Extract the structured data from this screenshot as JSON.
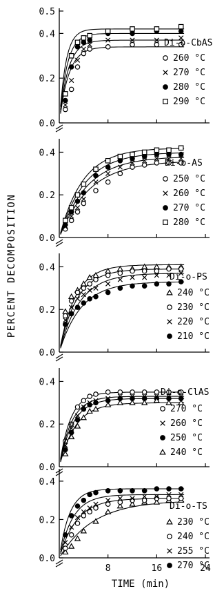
{
  "figure": {
    "ylabel": "PERCENT DECOMPOSITION",
    "xlabel": "TIME (min)"
  },
  "colors": {
    "ink": "#000000",
    "paper": "#ffffff"
  },
  "chart_data": [
    {
      "type": "scatter",
      "title": "Di-o-CbAS",
      "xlim": [
        0,
        24
      ],
      "ylim": [
        0,
        0.5
      ],
      "yticks": [
        "0.0",
        "0.2",
        "0.4",
        "0.5"
      ],
      "series": [
        {
          "name": "260 °C",
          "marker": "open-circle",
          "x": [
            1,
            2,
            3,
            4,
            5,
            8,
            12,
            16,
            20
          ],
          "y": [
            0.06,
            0.15,
            0.25,
            0.31,
            0.33,
            0.34,
            0.35,
            0.35,
            0.35
          ],
          "fit": [
            0.34,
            0.65
          ]
        },
        {
          "name": "270 °C",
          "marker": "cross",
          "x": [
            1,
            2,
            3,
            4,
            5,
            8,
            12,
            16,
            20
          ],
          "y": [
            0.08,
            0.19,
            0.28,
            0.33,
            0.35,
            0.37,
            0.37,
            0.37,
            0.38
          ],
          "fit": [
            0.37,
            0.7
          ]
        },
        {
          "name": "280 °C",
          "marker": "filled-circle",
          "x": [
            1,
            2,
            3,
            4,
            5,
            8,
            12,
            16,
            20
          ],
          "y": [
            0.1,
            0.25,
            0.34,
            0.36,
            0.37,
            0.4,
            0.4,
            0.41,
            0.41
          ],
          "fit": [
            0.4,
            0.8
          ]
        },
        {
          "name": "290 °C",
          "marker": "open-square",
          "x": [
            1,
            2,
            3,
            4,
            5,
            8,
            12,
            16,
            20
          ],
          "y": [
            0.13,
            0.3,
            0.36,
            0.38,
            0.39,
            0.41,
            0.42,
            0.42,
            0.43
          ],
          "fit": [
            0.42,
            0.95
          ]
        }
      ]
    },
    {
      "type": "scatter",
      "title": "Di-o-AS",
      "xlim": [
        0,
        24
      ],
      "ylim": [
        0,
        0.45
      ],
      "yticks": [
        "0.0",
        "0.2",
        "0.4"
      ],
      "series": [
        {
          "name": "250 °C",
          "marker": "open-circle",
          "x": [
            1,
            2,
            3,
            4,
            6,
            8,
            10,
            12,
            14,
            16,
            18,
            20
          ],
          "y": [
            0.04,
            0.08,
            0.12,
            0.16,
            0.22,
            0.26,
            0.3,
            0.33,
            0.34,
            0.35,
            0.35,
            0.35
          ],
          "fit": [
            0.36,
            0.2
          ]
        },
        {
          "name": "260 °C",
          "marker": "cross",
          "x": [
            1,
            2,
            3,
            4,
            6,
            8,
            10,
            12,
            14,
            16,
            18,
            20
          ],
          "y": [
            0.05,
            0.1,
            0.14,
            0.18,
            0.26,
            0.3,
            0.33,
            0.35,
            0.36,
            0.37,
            0.37,
            0.37
          ],
          "fit": [
            0.38,
            0.22
          ]
        },
        {
          "name": "270 °C",
          "marker": "filled-circle",
          "x": [
            1,
            2,
            3,
            4,
            6,
            8,
            10,
            12,
            14,
            16,
            18,
            20
          ],
          "y": [
            0.06,
            0.12,
            0.17,
            0.21,
            0.29,
            0.33,
            0.36,
            0.37,
            0.38,
            0.39,
            0.39,
            0.39
          ],
          "fit": [
            0.4,
            0.24
          ]
        },
        {
          "name": "280 °C",
          "marker": "open-square",
          "x": [
            1,
            2,
            3,
            4,
            6,
            8,
            10,
            12,
            14,
            16,
            18,
            20
          ],
          "y": [
            0.08,
            0.14,
            0.2,
            0.25,
            0.32,
            0.36,
            0.38,
            0.39,
            0.4,
            0.41,
            0.41,
            0.42
          ],
          "fit": [
            0.42,
            0.26
          ]
        }
      ]
    },
    {
      "type": "scatter",
      "title": "Di-o-PS",
      "xlim": [
        0,
        24
      ],
      "ylim": [
        0,
        0.45
      ],
      "yticks": [
        "0.0",
        "0.2",
        "0.4"
      ],
      "series": [
        {
          "name": "240 °C",
          "marker": "open-triangle",
          "x": [
            1,
            2,
            3,
            4,
            5,
            6,
            8,
            10,
            12,
            14,
            16,
            18,
            20
          ],
          "y": [
            0.19,
            0.26,
            0.29,
            0.32,
            0.35,
            0.36,
            0.38,
            0.39,
            0.39,
            0.4,
            0.4,
            0.4,
            0.4
          ],
          "fit": [
            0.41,
            0.38
          ]
        },
        {
          "name": "230 °C",
          "marker": "open-circle",
          "x": [
            1,
            2,
            3,
            4,
            5,
            6,
            8,
            10,
            12,
            14,
            16,
            18,
            20
          ],
          "y": [
            0.17,
            0.24,
            0.28,
            0.3,
            0.32,
            0.34,
            0.36,
            0.37,
            0.38,
            0.38,
            0.38,
            0.39,
            0.39
          ],
          "fit": [
            0.39,
            0.35
          ]
        },
        {
          "name": "220 °C",
          "marker": "cross",
          "x": [
            1,
            2,
            3,
            4,
            5,
            6,
            8,
            10,
            12,
            14,
            16,
            18,
            20
          ],
          "y": [
            0.15,
            0.21,
            0.25,
            0.27,
            0.29,
            0.3,
            0.32,
            0.34,
            0.35,
            0.35,
            0.36,
            0.36,
            0.37
          ],
          "fit": [
            0.37,
            0.3
          ]
        },
        {
          "name": "210 °C",
          "marker": "filled-circle",
          "x": [
            1,
            2,
            3,
            4,
            5,
            6,
            8,
            10,
            12,
            14,
            16,
            18,
            20
          ],
          "y": [
            0.13,
            0.18,
            0.21,
            0.23,
            0.25,
            0.26,
            0.28,
            0.3,
            0.31,
            0.31,
            0.32,
            0.32,
            0.33
          ],
          "fit": [
            0.33,
            0.28
          ]
        }
      ]
    },
    {
      "type": "scatter",
      "title": "Di-o-ClAS",
      "xlim": [
        0,
        24
      ],
      "ylim": [
        0,
        0.45
      ],
      "yticks": [
        "0.0",
        "0.2",
        "0.4"
      ],
      "series": [
        {
          "name": "270 °C",
          "marker": "open-circle",
          "x": [
            1,
            2,
            3,
            4,
            5,
            6,
            8,
            10,
            12,
            14,
            16,
            18,
            20
          ],
          "y": [
            0.12,
            0.2,
            0.28,
            0.31,
            0.33,
            0.34,
            0.35,
            0.35,
            0.35,
            0.35,
            0.35,
            0.35,
            0.35
          ],
          "fit": [
            0.35,
            0.55
          ]
        },
        {
          "name": "260 °C",
          "marker": "cross",
          "x": [
            1,
            2,
            3,
            4,
            5,
            6,
            8,
            10,
            12,
            14,
            16,
            18,
            20
          ],
          "y": [
            0.1,
            0.18,
            0.24,
            0.28,
            0.3,
            0.31,
            0.32,
            0.33,
            0.33,
            0.33,
            0.33,
            0.33,
            0.33
          ],
          "fit": [
            0.33,
            0.5
          ]
        },
        {
          "name": "250 °C",
          "marker": "filled-circle",
          "x": [
            1,
            2,
            3,
            4,
            5,
            6,
            8,
            10,
            12,
            14,
            16,
            18,
            20
          ],
          "y": [
            0.08,
            0.16,
            0.22,
            0.27,
            0.29,
            0.3,
            0.31,
            0.32,
            0.32,
            0.32,
            0.32,
            0.32,
            0.32
          ],
          "fit": [
            0.32,
            0.45
          ]
        },
        {
          "name": "240 °C",
          "marker": "open-triangle",
          "x": [
            1,
            2,
            3,
            4,
            5,
            6,
            8,
            10,
            12,
            14,
            16,
            18,
            20
          ],
          "y": [
            0.06,
            0.14,
            0.19,
            0.23,
            0.26,
            0.27,
            0.29,
            0.3,
            0.3,
            0.3,
            0.31,
            0.3,
            0.3
          ],
          "fit": [
            0.3,
            0.38
          ]
        }
      ]
    },
    {
      "type": "scatter",
      "title": "Di-o-TS",
      "xlim": [
        0,
        24
      ],
      "ylim": [
        0,
        0.45
      ],
      "yticks": [
        "0.0",
        "0.2",
        "0.4"
      ],
      "series": [
        {
          "name": "230 °C",
          "marker": "open-triangle",
          "x": [
            1,
            2,
            3,
            4,
            6,
            8,
            10,
            12,
            14,
            16,
            18,
            20
          ],
          "y": [
            0.03,
            0.06,
            0.1,
            0.14,
            0.19,
            0.24,
            0.27,
            0.28,
            0.29,
            0.29,
            0.3,
            0.3
          ],
          "fit": [
            0.3,
            0.18
          ]
        },
        {
          "name": "240 °C",
          "marker": "open-circle",
          "x": [
            1,
            2,
            3,
            4,
            5,
            6,
            8,
            10,
            12,
            14,
            16,
            18,
            20
          ],
          "y": [
            0.05,
            0.12,
            0.18,
            0.22,
            0.24,
            0.26,
            0.28,
            0.29,
            0.3,
            0.3,
            0.31,
            0.31,
            0.31
          ],
          "fit": [
            0.31,
            0.35
          ]
        },
        {
          "name": "255 °C",
          "marker": "cross",
          "x": [
            1,
            2,
            3,
            4,
            5,
            6,
            8,
            10,
            12,
            14,
            16,
            18,
            20
          ],
          "y": [
            0.08,
            0.16,
            0.21,
            0.24,
            0.26,
            0.28,
            0.3,
            0.31,
            0.31,
            0.32,
            0.32,
            0.33,
            0.33
          ],
          "fit": [
            0.33,
            0.45
          ]
        },
        {
          "name": "270 °C",
          "marker": "filled-circle",
          "x": [
            1,
            2,
            3,
            4,
            5,
            6,
            8,
            10,
            12,
            14,
            16,
            18,
            20
          ],
          "y": [
            0.12,
            0.22,
            0.27,
            0.3,
            0.33,
            0.34,
            0.35,
            0.35,
            0.35,
            0.35,
            0.36,
            0.36,
            0.36
          ],
          "fit": [
            0.36,
            0.6
          ]
        }
      ]
    }
  ],
  "xticks": [
    "8",
    "16",
    "24"
  ]
}
